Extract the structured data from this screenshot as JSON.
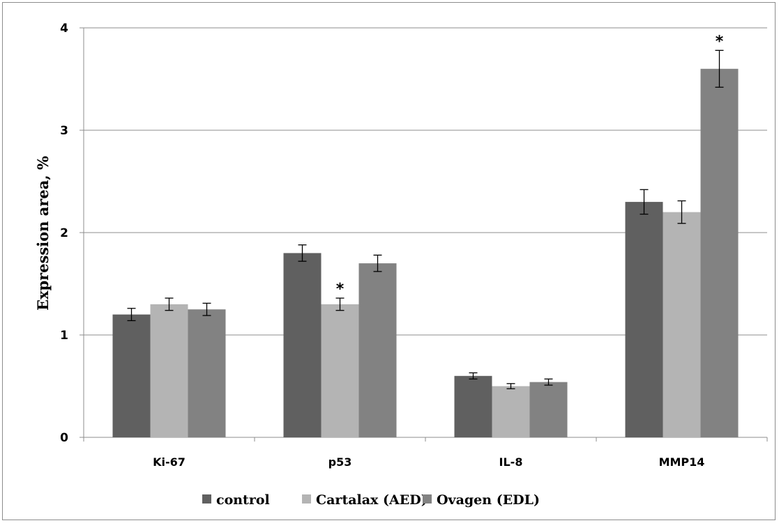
{
  "chart_data": {
    "type": "bar",
    "categories": [
      "Ki-67",
      "p53",
      "IL-8",
      "MMP14"
    ],
    "series": [
      {
        "name": "control",
        "color": "#606060",
        "values": [
          1.2,
          1.8,
          0.6,
          2.3
        ],
        "errors": [
          0.06,
          0.08,
          0.03,
          0.12
        ]
      },
      {
        "name": "Cartalax (AED)",
        "color": "#b4b4b4",
        "values": [
          1.3,
          1.3,
          0.5,
          2.2
        ],
        "errors": [
          0.06,
          0.06,
          0.025,
          0.11
        ]
      },
      {
        "name": "Ovagen (EDL)",
        "color": "#828282",
        "values": [
          1.25,
          1.7,
          0.54,
          3.6
        ],
        "errors": [
          0.06,
          0.08,
          0.03,
          0.18
        ]
      }
    ],
    "annotations": [
      {
        "series": 1,
        "category": 1,
        "text": "*"
      },
      {
        "series": 2,
        "category": 3,
        "text": "*"
      }
    ],
    "ylabel": "Expression area, %",
    "xlabel": "",
    "title": "",
    "ylim": [
      0,
      4
    ],
    "yticks": [
      "0",
      "1",
      "2",
      "3",
      "4"
    ],
    "grid": true,
    "legend_position": "bottom"
  }
}
